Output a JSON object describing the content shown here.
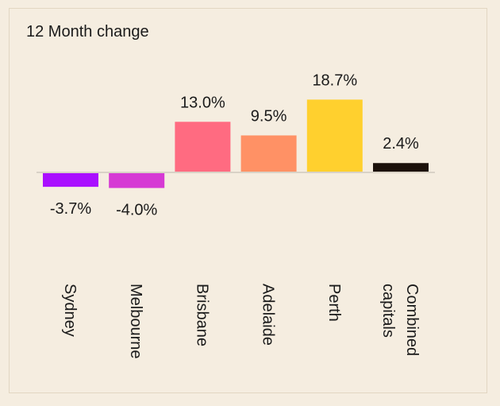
{
  "chart_data": {
    "type": "bar",
    "title": "12 Month change",
    "categories": [
      "Sydney",
      "Melbourne",
      "Brisbane",
      "Adelaide",
      "Perth",
      "Combined capitals"
    ],
    "category_lines": [
      [
        "Sydney"
      ],
      [
        "Melbourne"
      ],
      [
        "Brisbane"
      ],
      [
        "Adelaide"
      ],
      [
        "Perth"
      ],
      [
        "Combined",
        "capitals"
      ]
    ],
    "values": [
      -3.7,
      -4.0,
      13.0,
      9.5,
      18.7,
      2.4
    ],
    "value_labels": [
      "-3.7%",
      "-4.0%",
      "13.0%",
      "9.5%",
      "18.7%",
      "2.4%"
    ],
    "colors": [
      "#aa0fff",
      "#d63ad4",
      "#ff6b81",
      "#ff9165",
      "#ffd02e",
      "#1c120b"
    ],
    "baseline_color": "#d9d2c6",
    "xlabel": "",
    "ylabel": "",
    "grid": false,
    "legend": "none"
  }
}
